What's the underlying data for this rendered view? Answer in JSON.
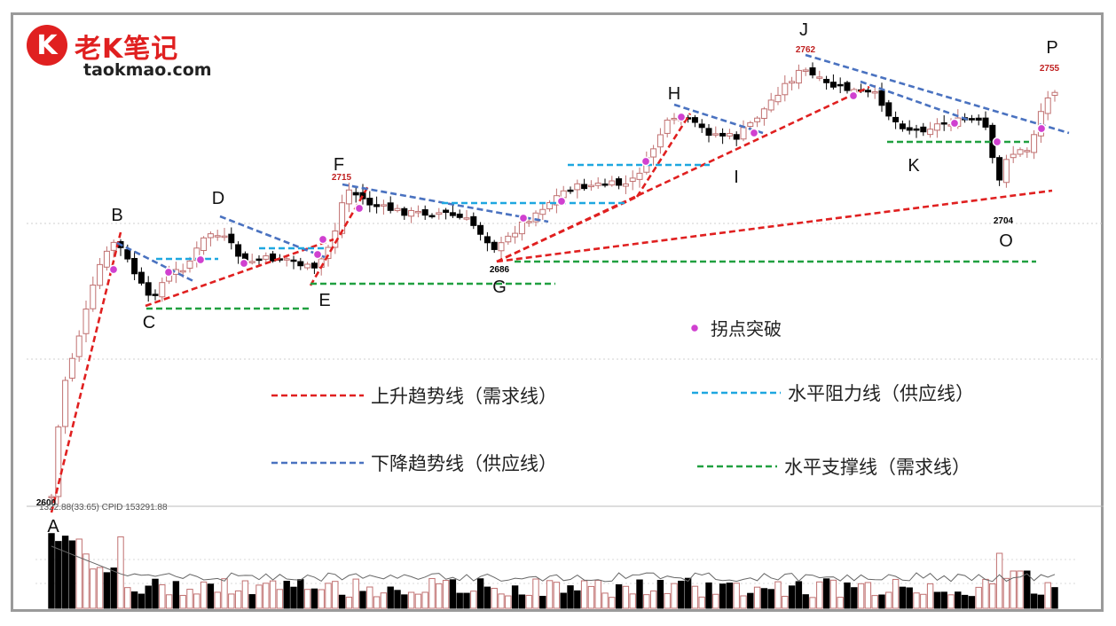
{
  "brand": {
    "logo_letter": "K",
    "name": "老K笔记",
    "url": "taokmao.com"
  },
  "header_overlay": "1322.88(33.65)  CPID 153291.88",
  "chart_data": {
    "type": "candlestick",
    "title": "",
    "xlabel": "",
    "ylabel": "",
    "point_labels": [
      {
        "label": "A",
        "price": 2600,
        "price_label": "2600"
      },
      {
        "label": "B"
      },
      {
        "label": "C"
      },
      {
        "label": "D"
      },
      {
        "label": "E"
      },
      {
        "label": "F",
        "price": 2715,
        "price_label": "2715"
      },
      {
        "label": "G",
        "price": 2686,
        "price_label": "2686"
      },
      {
        "label": "H"
      },
      {
        "label": "I"
      },
      {
        "label": "J",
        "price": 2762,
        "price_label": "2762"
      },
      {
        "label": "K"
      },
      {
        "label": "O",
        "price": 2704,
        "price_label": "2704"
      },
      {
        "label": "P",
        "price": 2755,
        "price_label": "2755"
      }
    ],
    "legend": [
      {
        "key": "uptrend",
        "text": "上升趋势线（需求线）",
        "color": "#e02020"
      },
      {
        "key": "resistance",
        "text": "水平阻力线（供应线）",
        "color": "#1ea7e0"
      },
      {
        "key": "downtrend",
        "text": "下降趋势线（供应线）",
        "color": "#4a72c0"
      },
      {
        "key": "support",
        "text": "水平支撑线（需求线）",
        "color": "#20a040"
      },
      {
        "key": "pivot",
        "text": "拐点突破",
        "color": "#d040d0"
      }
    ],
    "colors": {
      "up_candle": "#c07070",
      "down_candle": "#000000"
    }
  }
}
